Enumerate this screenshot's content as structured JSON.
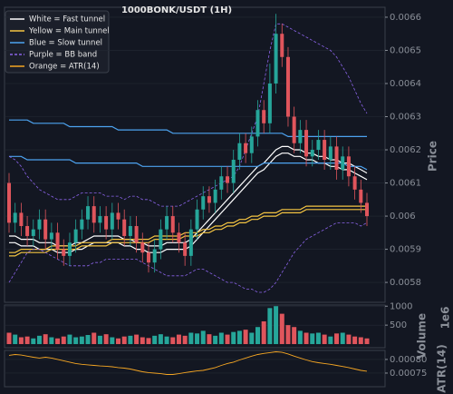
{
  "chart_data": [
    {
      "type": "candlestick",
      "title": "1000BONK/USDT (1H)",
      "ylabel": "Price",
      "ylim": [
        0.00574,
        0.00663
      ],
      "yticks": [
        0.0058,
        0.0059,
        0.006,
        0.0061,
        0.0062,
        0.0063,
        0.0064,
        0.0065,
        0.0066
      ],
      "grid": true,
      "legend": "upper left",
      "up_color": "#26a69a",
      "down_color": "#e0555c",
      "open": [
        0.0061,
        0.00598,
        0.00601,
        0.00597,
        0.00594,
        0.00596,
        0.00599,
        0.00593,
        0.00595,
        0.0059,
        0.00588,
        0.00592,
        0.00596,
        0.00599,
        0.00603,
        0.00598,
        0.006,
        0.00596,
        0.00601,
        0.00599,
        0.00594,
        0.00597,
        0.00592,
        0.00589,
        0.00586,
        0.0059,
        0.00596,
        0.006,
        0.00595,
        0.00592,
        0.00588,
        0.00596,
        0.00602,
        0.00606,
        0.00604,
        0.00608,
        0.00612,
        0.0061,
        0.00617,
        0.00622,
        0.00619,
        0.00624,
        0.00632,
        0.00628,
        0.0064,
        0.00655,
        0.00648,
        0.0063,
        0.00622,
        0.00626,
        0.00618,
        0.0062,
        0.00623,
        0.00617,
        0.00621,
        0.00614,
        0.00618,
        0.00612,
        0.00608,
        0.00604
      ],
      "high": [
        0.00613,
        0.00604,
        0.00604,
        0.006,
        0.00599,
        0.00602,
        0.00602,
        0.00598,
        0.00598,
        0.00593,
        0.00595,
        0.00599,
        0.00602,
        0.00606,
        0.00606,
        0.00603,
        0.00603,
        0.00604,
        0.00604,
        0.00602,
        0.006,
        0.006,
        0.00595,
        0.00592,
        0.00593,
        0.00599,
        0.00603,
        0.00603,
        0.00598,
        0.00595,
        0.00599,
        0.00605,
        0.00609,
        0.00609,
        0.00611,
        0.00615,
        0.00615,
        0.0062,
        0.00625,
        0.00625,
        0.00627,
        0.00635,
        0.00635,
        0.00646,
        0.00661,
        0.00658,
        0.00651,
        0.00633,
        0.00629,
        0.00629,
        0.00623,
        0.00626,
        0.00626,
        0.00624,
        0.00624,
        0.00621,
        0.00621,
        0.00615,
        0.00611,
        0.00607
      ],
      "low": [
        0.00595,
        0.00595,
        0.00594,
        0.00591,
        0.00591,
        0.00593,
        0.0059,
        0.0059,
        0.00587,
        0.00585,
        0.00585,
        0.00589,
        0.00593,
        0.00596,
        0.00595,
        0.00595,
        0.00593,
        0.00593,
        0.00596,
        0.00591,
        0.00591,
        0.00589,
        0.00586,
        0.00583,
        0.00583,
        0.00587,
        0.00593,
        0.00592,
        0.00589,
        0.00585,
        0.00585,
        0.00593,
        0.00599,
        0.00601,
        0.00601,
        0.00605,
        0.00607,
        0.00607,
        0.00614,
        0.00616,
        0.00616,
        0.00621,
        0.00625,
        0.00625,
        0.00637,
        0.00645,
        0.00627,
        0.00619,
        0.00619,
        0.00615,
        0.00615,
        0.00617,
        0.00614,
        0.00614,
        0.00611,
        0.00611,
        0.00609,
        0.00605,
        0.00601,
        0.00597
      ],
      "close": [
        0.00598,
        0.00601,
        0.00597,
        0.00594,
        0.00596,
        0.00599,
        0.00593,
        0.00595,
        0.0059,
        0.00588,
        0.00592,
        0.00596,
        0.00599,
        0.00603,
        0.00598,
        0.006,
        0.00596,
        0.00601,
        0.00599,
        0.00594,
        0.00597,
        0.00592,
        0.00589,
        0.00586,
        0.0059,
        0.00596,
        0.006,
        0.00595,
        0.00592,
        0.00588,
        0.00596,
        0.00602,
        0.00606,
        0.00604,
        0.00608,
        0.00612,
        0.0061,
        0.00617,
        0.00622,
        0.00619,
        0.00624,
        0.00632,
        0.00628,
        0.0064,
        0.00655,
        0.00648,
        0.0063,
        0.00622,
        0.00626,
        0.00618,
        0.0062,
        0.00623,
        0.00617,
        0.00621,
        0.00614,
        0.00618,
        0.00612,
        0.00608,
        0.00604,
        0.006
      ],
      "series": [
        {
          "name": "White = Fast tunnel",
          "color": "#ffffff",
          "style": "solid",
          "lines": [
            [
              0.00594,
              0.00594,
              0.00593,
              0.00593,
              0.00593,
              0.00592,
              0.00592,
              0.00592,
              0.00591,
              0.00591,
              0.00591,
              0.00592,
              0.00592,
              0.00593,
              0.00594,
              0.00594,
              0.00594,
              0.00594,
              0.00594,
              0.00593,
              0.00593,
              0.00592,
              0.00592,
              0.00591,
              0.00591,
              0.00591,
              0.00592,
              0.00592,
              0.00592,
              0.00592,
              0.00593,
              0.00595,
              0.00597,
              0.00599,
              0.00601,
              0.00603,
              0.00605,
              0.00607,
              0.00609,
              0.00611,
              0.00613,
              0.00615,
              0.00616,
              0.00618,
              0.0062,
              0.00621,
              0.00621,
              0.0062,
              0.0062,
              0.00619,
              0.00619,
              0.00618,
              0.00618,
              0.00617,
              0.00617,
              0.00616,
              0.00616,
              0.00615,
              0.00614,
              0.00613
            ],
            [
              0.00592,
              0.00592,
              0.00591,
              0.00591,
              0.00591,
              0.0059,
              0.0059,
              0.0059,
              0.00589,
              0.00589,
              0.00589,
              0.0059,
              0.0059,
              0.00591,
              0.00592,
              0.00592,
              0.00592,
              0.00592,
              0.00592,
              0.00591,
              0.00591,
              0.0059,
              0.0059,
              0.00589,
              0.00589,
              0.00589,
              0.0059,
              0.0059,
              0.0059,
              0.0059,
              0.00591,
              0.00593,
              0.00595,
              0.00597,
              0.00599,
              0.00601,
              0.00603,
              0.00605,
              0.00607,
              0.00609,
              0.00611,
              0.00613,
              0.00614,
              0.00616,
              0.00618,
              0.00619,
              0.00619,
              0.00618,
              0.00618,
              0.00617,
              0.00617,
              0.00616,
              0.00616,
              0.00615,
              0.00615,
              0.00614,
              0.00614,
              0.00613,
              0.00612,
              0.00611
            ]
          ]
        },
        {
          "name": "Yellow = Main tunnel",
          "color": "#f5c542",
          "style": "solid",
          "lines": [
            [
              0.00589,
              0.00589,
              0.0059,
              0.0059,
              0.0059,
              0.0059,
              0.0059,
              0.00591,
              0.00591,
              0.00591,
              0.00591,
              0.00591,
              0.00592,
              0.00592,
              0.00592,
              0.00592,
              0.00592,
              0.00593,
              0.00593,
              0.00593,
              0.00593,
              0.00593,
              0.00593,
              0.00593,
              0.00594,
              0.00594,
              0.00594,
              0.00594,
              0.00594,
              0.00595,
              0.00595,
              0.00595,
              0.00596,
              0.00596,
              0.00597,
              0.00597,
              0.00598,
              0.00598,
              0.00599,
              0.00599,
              0.006,
              0.006,
              0.00601,
              0.00601,
              0.00601,
              0.00602,
              0.00602,
              0.00602,
              0.00602,
              0.00603,
              0.00603,
              0.00603,
              0.00603,
              0.00603,
              0.00603,
              0.00603,
              0.00603,
              0.00603,
              0.00603,
              0.00603
            ],
            [
              0.00588,
              0.00588,
              0.00589,
              0.00589,
              0.00589,
              0.00589,
              0.00589,
              0.0059,
              0.0059,
              0.0059,
              0.0059,
              0.0059,
              0.00591,
              0.00591,
              0.00591,
              0.00591,
              0.00591,
              0.00592,
              0.00592,
              0.00592,
              0.00592,
              0.00592,
              0.00592,
              0.00592,
              0.00593,
              0.00593,
              0.00593,
              0.00593,
              0.00593,
              0.00594,
              0.00594,
              0.00594,
              0.00595,
              0.00595,
              0.00596,
              0.00596,
              0.00597,
              0.00597,
              0.00598,
              0.00598,
              0.00599,
              0.00599,
              0.006,
              0.006,
              0.006,
              0.00601,
              0.00601,
              0.00601,
              0.00601,
              0.00602,
              0.00602,
              0.00602,
              0.00602,
              0.00602,
              0.00602,
              0.00602,
              0.00602,
              0.00602,
              0.00602,
              0.00602
            ]
          ]
        },
        {
          "name": "Blue = Slow tunnel",
          "color": "#4da3f0",
          "style": "solid",
          "lines": [
            [
              0.00629,
              0.00629,
              0.00629,
              0.00629,
              0.00628,
              0.00628,
              0.00628,
              0.00628,
              0.00628,
              0.00628,
              0.00627,
              0.00627,
              0.00627,
              0.00627,
              0.00627,
              0.00627,
              0.00627,
              0.00627,
              0.00626,
              0.00626,
              0.00626,
              0.00626,
              0.00626,
              0.00626,
              0.00626,
              0.00626,
              0.00626,
              0.00625,
              0.00625,
              0.00625,
              0.00625,
              0.00625,
              0.00625,
              0.00625,
              0.00625,
              0.00625,
              0.00625,
              0.00625,
              0.00625,
              0.00625,
              0.00625,
              0.00625,
              0.00625,
              0.00625,
              0.00625,
              0.00625,
              0.00624,
              0.00624,
              0.00624,
              0.00624,
              0.00624,
              0.00624,
              0.00624,
              0.00624,
              0.00624,
              0.00624,
              0.00624,
              0.00624,
              0.00624,
              0.00624
            ],
            [
              0.00618,
              0.00618,
              0.00618,
              0.00617,
              0.00617,
              0.00617,
              0.00617,
              0.00617,
              0.00617,
              0.00617,
              0.00617,
              0.00616,
              0.00616,
              0.00616,
              0.00616,
              0.00616,
              0.00616,
              0.00616,
              0.00616,
              0.00616,
              0.00616,
              0.00616,
              0.00615,
              0.00615,
              0.00615,
              0.00615,
              0.00615,
              0.00615,
              0.00615,
              0.00615,
              0.00615,
              0.00615,
              0.00615,
              0.00615,
              0.00615,
              0.00615,
              0.00615,
              0.00615,
              0.00615,
              0.00615,
              0.00615,
              0.00615,
              0.00616,
              0.00616,
              0.00616,
              0.00616,
              0.00616,
              0.00616,
              0.00616,
              0.00616,
              0.00616,
              0.00616,
              0.00616,
              0.00616,
              0.00616,
              0.00616,
              0.00615,
              0.00615,
              0.00615,
              0.00614
            ]
          ]
        },
        {
          "name": "Purple = BB band",
          "color": "#8a63e8",
          "style": "dashed",
          "lines": [
            [
              0.00618,
              0.00617,
              0.00615,
              0.00612,
              0.0061,
              0.00608,
              0.00607,
              0.00606,
              0.00605,
              0.00605,
              0.00605,
              0.00606,
              0.00607,
              0.00607,
              0.00607,
              0.00607,
              0.00606,
              0.00606,
              0.00606,
              0.00605,
              0.00606,
              0.00606,
              0.00605,
              0.00605,
              0.00604,
              0.00603,
              0.00603,
              0.00603,
              0.00603,
              0.00604,
              0.00605,
              0.00606,
              0.00607,
              0.00608,
              0.00609,
              0.0061,
              0.00611,
              0.00612,
              0.00615,
              0.0062,
              0.00625,
              0.0063,
              0.0064,
              0.0065,
              0.00658,
              0.00658,
              0.00657,
              0.00656,
              0.00655,
              0.00654,
              0.00653,
              0.00652,
              0.00651,
              0.0065,
              0.00648,
              0.00645,
              0.00642,
              0.00638,
              0.00634,
              0.00631
            ],
            [
              0.0058,
              0.00583,
              0.00586,
              0.00589,
              0.0059,
              0.0059,
              0.00589,
              0.00588,
              0.00587,
              0.00586,
              0.00585,
              0.00585,
              0.00585,
              0.00585,
              0.00586,
              0.00586,
              0.00587,
              0.00587,
              0.00587,
              0.00587,
              0.00587,
              0.00587,
              0.00586,
              0.00585,
              0.00584,
              0.00583,
              0.00582,
              0.00582,
              0.00582,
              0.00582,
              0.00583,
              0.00584,
              0.00584,
              0.00583,
              0.00582,
              0.00581,
              0.0058,
              0.0058,
              0.00579,
              0.00578,
              0.00578,
              0.00577,
              0.00577,
              0.00578,
              0.0058,
              0.00583,
              0.00586,
              0.00589,
              0.00591,
              0.00593,
              0.00594,
              0.00595,
              0.00596,
              0.00597,
              0.00598,
              0.00598,
              0.00598,
              0.00598,
              0.00597,
              0.00598
            ]
          ]
        }
      ]
    },
    {
      "type": "bar",
      "ylabel": "Volume",
      "scale_label": "1e6",
      "ylim": [
        -95,
        1030
      ],
      "yticks": [
        500,
        1000
      ],
      "grid": true,
      "values": [
        300,
        250,
        180,
        200,
        150,
        220,
        260,
        180,
        150,
        200,
        250,
        180,
        200,
        240,
        300,
        220,
        260,
        180,
        150,
        200,
        220,
        250,
        180,
        160,
        220,
        260,
        200,
        180,
        250,
        220,
        300,
        280,
        350,
        260,
        220,
        300,
        250,
        320,
        350,
        380,
        300,
        450,
        600,
        950,
        1000,
        800,
        500,
        450,
        350,
        300,
        280,
        300,
        250,
        200,
        280,
        300,
        250,
        200,
        180,
        150
      ]
    },
    {
      "type": "line",
      "ylabel": "ATR(14)",
      "ylim": [
        0.0007,
        0.000833
      ],
      "yticks": [
        {
          "value": 0.00075,
          "label": "0.00075"
        },
        {
          "value": 0.0008,
          "label": "0.00080"
        }
      ],
      "grid": true,
      "series": [
        {
          "name": "Orange = ATR(14)",
          "color": "#f5a623",
          "style": "solid",
          "values": [
            0.000815,
            0.000818,
            0.000816,
            0.000812,
            0.000808,
            0.000805,
            0.000808,
            0.000805,
            0.0008,
            0.000795,
            0.00079,
            0.000785,
            0.000782,
            0.00078,
            0.000778,
            0.000776,
            0.000775,
            0.000773,
            0.00077,
            0.000768,
            0.000765,
            0.00076,
            0.000755,
            0.000752,
            0.00075,
            0.000748,
            0.000745,
            0.000745,
            0.000748,
            0.000752,
            0.000755,
            0.000758,
            0.00076,
            0.000765,
            0.00077,
            0.000778,
            0.000785,
            0.00079,
            0.000798,
            0.000805,
            0.000812,
            0.000818,
            0.000822,
            0.000825,
            0.000828,
            0.000826,
            0.00082,
            0.000812,
            0.000805,
            0.000798,
            0.000792,
            0.000788,
            0.000785,
            0.000782,
            0.000778,
            0.000774,
            0.00077,
            0.000765,
            0.00076,
            0.000757
          ]
        }
      ]
    }
  ]
}
